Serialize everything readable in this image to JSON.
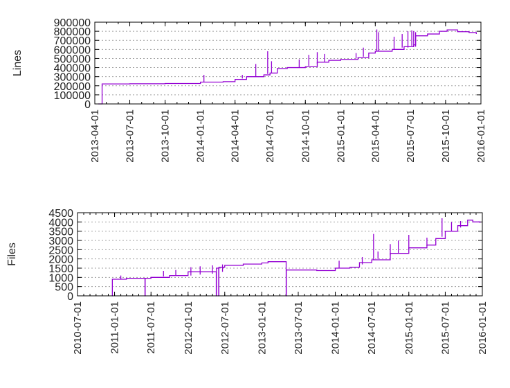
{
  "colors": {
    "series": "#9400d3",
    "grid": "#a0a0a0",
    "frame": "#000000"
  },
  "chart_data": [
    {
      "type": "line",
      "title": "",
      "xlabel": "",
      "ylabel": "Lines",
      "grid": "horizontal dashed",
      "xlim": [
        "2013-04-01",
        "2016-01-01"
      ],
      "ylim": [
        0,
        900000
      ],
      "x_ticks": [
        "2013-04-01",
        "2013-07-01",
        "2013-10-01",
        "2014-01-01",
        "2014-04-01",
        "2014-07-01",
        "2014-10-01",
        "2015-01-01",
        "2015-04-01",
        "2015-07-01",
        "2015-10-01",
        "2016-01-01"
      ],
      "y_ticks": [
        "0",
        "100000",
        "200000",
        "300000",
        "400000",
        "500000",
        "600000",
        "700000",
        "800000",
        "900000"
      ],
      "series": [
        {
          "points": [
            [
              "2013-04-10",
              0
            ],
            [
              "2013-04-20",
              220000
            ],
            [
              "2013-07-01",
              222000
            ],
            [
              "2013-10-01",
              225000
            ],
            [
              "2014-01-01",
              240000
            ],
            [
              "2014-03-01",
              245000
            ],
            [
              "2014-04-01",
              270000
            ],
            [
              "2014-05-01",
              300000
            ],
            [
              "2014-06-15",
              320000
            ],
            [
              "2014-07-01",
              340000
            ],
            [
              "2014-07-20",
              390000
            ],
            [
              "2014-08-15",
              400000
            ],
            [
              "2014-10-01",
              410000
            ],
            [
              "2014-11-01",
              460000
            ],
            [
              "2014-12-01",
              480000
            ],
            [
              "2015-01-01",
              490000
            ],
            [
              "2015-02-15",
              510000
            ],
            [
              "2015-03-15",
              560000
            ],
            [
              "2015-04-01",
              580000
            ],
            [
              "2015-05-15",
              600000
            ],
            [
              "2015-06-15",
              630000
            ],
            [
              "2015-07-10",
              650000
            ],
            [
              "2015-07-15",
              750000
            ],
            [
              "2015-08-15",
              770000
            ],
            [
              "2015-09-15",
              800000
            ],
            [
              "2015-10-05",
              815000
            ],
            [
              "2015-11-01",
              795000
            ],
            [
              "2015-12-01",
              785000
            ],
            [
              "2015-12-20",
              770000
            ]
          ],
          "spikes": [
            [
              "2014-01-10",
              240000,
              320000
            ],
            [
              "2014-04-20",
              280000,
              320000
            ],
            [
              "2014-05-25",
              300000,
              440000
            ],
            [
              "2014-06-25",
              330000,
              580000
            ],
            [
              "2014-07-05",
              340000,
              470000
            ],
            [
              "2014-09-15",
              400000,
              490000
            ],
            [
              "2014-10-10",
              420000,
              540000
            ],
            [
              "2014-11-01",
              440000,
              570000
            ],
            [
              "2014-11-20",
              460000,
              550000
            ],
            [
              "2015-02-10",
              500000,
              560000
            ],
            [
              "2015-03-01",
              520000,
              620000
            ],
            [
              "2015-04-05",
              580000,
              820000
            ],
            [
              "2015-04-10",
              580000,
              790000
            ],
            [
              "2015-05-20",
              600000,
              740000
            ],
            [
              "2015-06-10",
              620000,
              770000
            ],
            [
              "2015-06-25",
              620000,
              800000
            ],
            [
              "2015-07-05",
              640000,
              810000
            ],
            [
              "2015-07-10",
              630000,
              800000
            ],
            [
              "2015-07-15",
              630000,
              790000
            ]
          ]
        }
      ]
    },
    {
      "type": "line",
      "title": "",
      "xlabel": "",
      "ylabel": "Files",
      "grid": "horizontal dashed",
      "xlim": [
        "2010-07-01",
        "2016-01-01"
      ],
      "ylim": [
        0,
        4500
      ],
      "x_ticks": [
        "2010-07-01",
        "2011-01-01",
        "2011-07-01",
        "2012-01-01",
        "2012-07-01",
        "2013-01-01",
        "2013-07-01",
        "2014-01-01",
        "2014-07-01",
        "2015-01-01",
        "2015-07-01",
        "2016-01-01"
      ],
      "y_ticks": [
        "0",
        "500",
        "1000",
        "1500",
        "2000",
        "2500",
        "3000",
        "3500",
        "4000",
        "4500"
      ],
      "series": [
        {
          "points": [
            [
              "2010-12-20",
              0
            ],
            [
              "2010-12-21",
              900
            ],
            [
              "2011-03-01",
              950
            ],
            [
              "2011-06-01",
              0
            ],
            [
              "2011-06-02",
              950
            ],
            [
              "2011-07-01",
              1000
            ],
            [
              "2011-10-01",
              1100
            ],
            [
              "2012-01-01",
              1300
            ],
            [
              "2012-05-20",
              0
            ],
            [
              "2012-05-21",
              1500
            ],
            [
              "2012-06-01",
              0
            ],
            [
              "2012-06-02",
              1550
            ],
            [
              "2012-07-01",
              1650
            ],
            [
              "2012-10-01",
              1720
            ],
            [
              "2013-01-01",
              1780
            ],
            [
              "2013-02-01",
              1850
            ],
            [
              "2013-05-01",
              1850
            ],
            [
              "2013-05-02",
              0
            ],
            [
              "2013-05-03",
              1400
            ],
            [
              "2013-10-01",
              1370
            ],
            [
              "2014-01-01",
              1500
            ],
            [
              "2014-03-15",
              1550
            ],
            [
              "2014-05-01",
              1800
            ],
            [
              "2014-07-01",
              1950
            ],
            [
              "2014-10-01",
              2300
            ],
            [
              "2015-01-01",
              2600
            ],
            [
              "2015-04-01",
              2750
            ],
            [
              "2015-05-15",
              3100
            ],
            [
              "2015-07-01",
              3500
            ],
            [
              "2015-09-01",
              3800
            ],
            [
              "2015-10-20",
              4100
            ],
            [
              "2015-11-15",
              4000
            ],
            [
              "2015-12-20",
              3950
            ]
          ],
          "spikes": [
            [
              "2011-02-01",
              900,
              1100
            ],
            [
              "2011-09-01",
              1050,
              1350
            ],
            [
              "2011-11-01",
              1100,
              1400
            ],
            [
              "2012-01-15",
              1100,
              1550
            ],
            [
              "2012-03-01",
              1150,
              1600
            ],
            [
              "2012-05-01",
              1200,
              1650
            ],
            [
              "2012-06-20",
              1300,
              1700
            ],
            [
              "2014-01-20",
              1500,
              1900
            ],
            [
              "2014-05-15",
              1700,
              2100
            ],
            [
              "2014-07-10",
              1950,
              3350
            ],
            [
              "2014-08-01",
              2000,
              2400
            ],
            [
              "2014-10-01",
              2200,
              2800
            ],
            [
              "2014-11-10",
              2300,
              3000
            ],
            [
              "2015-01-01",
              2500,
              3300
            ],
            [
              "2015-04-01",
              2700,
              3150
            ],
            [
              "2015-06-15",
              3200,
              4200
            ],
            [
              "2015-08-01",
              3500,
              4000
            ],
            [
              "2015-09-15",
              3700,
              4050
            ]
          ]
        }
      ]
    }
  ]
}
